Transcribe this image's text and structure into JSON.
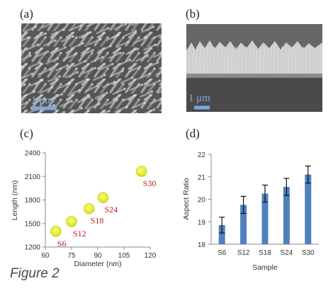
{
  "figure": {
    "caption": "Figure 2",
    "panel_labels": [
      "(a)",
      "(b)",
      "(c)",
      "(d)"
    ]
  },
  "images": {
    "a": {
      "scale_label": "1 μm",
      "description_kind": "top-view-nanorods-sem"
    },
    "b": {
      "scale_label": "1 μm",
      "description_kind": "cross-section-nanorods-sem"
    }
  },
  "colors": {
    "marker_fill": "#e6ef3a",
    "marker_edge": "#c9d82c",
    "sample_label": "#c0171e",
    "bar_fill": "#4f81bd",
    "scale_bar": "#7fa8dc",
    "sem_background": "#5a5a5a"
  },
  "chart_data": [
    {
      "type": "scatter",
      "title": "",
      "xlabel": "Diameter (nm)",
      "ylabel": "Length (nm)",
      "xlim": [
        60,
        120
      ],
      "ylim": [
        1200,
        2400
      ],
      "xticks": [
        60,
        75,
        90,
        105,
        120
      ],
      "yticks": [
        1200,
        1500,
        1800,
        2100,
        2400
      ],
      "points": [
        {
          "label": "S6",
          "x": 66,
          "y": 1400
        },
        {
          "label": "S12",
          "x": 75,
          "y": 1525
        },
        {
          "label": "S18",
          "x": 85,
          "y": 1690
        },
        {
          "label": "S24",
          "x": 93,
          "y": 1830
        },
        {
          "label": "S30",
          "x": 115,
          "y": 2165
        }
      ]
    },
    {
      "type": "bar",
      "title": "",
      "xlabel": "Sample",
      "ylabel": "Aspect Ratio",
      "ylim": [
        18,
        22
      ],
      "yticks": [
        18,
        19,
        20,
        21,
        22
      ],
      "categories": [
        "S6",
        "S12",
        "S18",
        "S24",
        "S30"
      ],
      "values": [
        18.85,
        19.75,
        20.25,
        20.55,
        21.1
      ],
      "errors": [
        0.35,
        0.38,
        0.38,
        0.38,
        0.38
      ]
    }
  ]
}
